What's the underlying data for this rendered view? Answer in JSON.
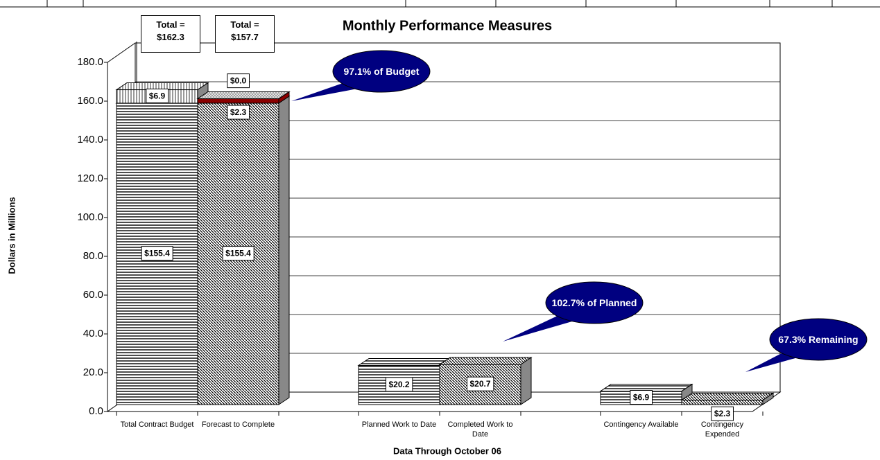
{
  "chart_data": {
    "type": "bar3d_stacked",
    "title": "Monthly Performance Measures",
    "y_label": "Dollars in Millions",
    "x_label": "Data Through October 06",
    "categories": [
      "Total Contract Budget",
      "Forecast to Complete",
      "Planned Work to Date",
      "Completed Work to Date",
      "Contingency Available",
      "Contingency Expended"
    ],
    "series": [
      {
        "color": "#000000",
        "values": [
          155.4,
          155.4,
          20.2,
          20.7,
          6.9,
          2.3
        ],
        "value_labels": [
          "$155.4",
          "$155.4",
          "$20.2",
          "$20.7",
          "$6.9",
          "$2.3"
        ]
      },
      {
        "color": "#808080",
        "values": [
          6.9,
          null,
          null,
          null,
          null,
          null
        ],
        "value_labels": [
          "$6.9",
          null,
          null,
          null,
          null,
          null
        ]
      },
      {
        "color": "#8b0000",
        "values": [
          null,
          2.3,
          null,
          null,
          null,
          null
        ],
        "value_labels": [
          null,
          "$2.3",
          null,
          null,
          null,
          null
        ]
      },
      {
        "color": "#9a9a9a",
        "values": [
          null,
          0.0,
          null,
          null,
          null,
          null
        ],
        "value_labels": [
          null,
          "$0.0",
          null,
          null,
          null,
          null
        ]
      }
    ],
    "ylim": [
      0,
      180
    ],
    "yticks": [
      {
        "value": 0,
        "label": "0.0"
      },
      {
        "value": 20,
        "label": "20.0"
      },
      {
        "value": 40,
        "label": "40.0"
      },
      {
        "value": 60,
        "label": "60.0"
      },
      {
        "value": 80,
        "label": "80.0"
      },
      {
        "value": 100,
        "label": "100.0"
      },
      {
        "value": 120,
        "label": "120.0"
      },
      {
        "value": 140,
        "label": "140.0"
      },
      {
        "value": 160,
        "label": "160.0"
      },
      {
        "value": 180,
        "label": "180.0"
      }
    ],
    "grid": true,
    "annotations": [
      {
        "text": "Total = $162.3"
      },
      {
        "text": "Total = $157.7"
      },
      {
        "text": "97.1% of Budget"
      },
      {
        "text": "102.7% of Planned"
      },
      {
        "text": "67.3% Remaining"
      }
    ]
  }
}
